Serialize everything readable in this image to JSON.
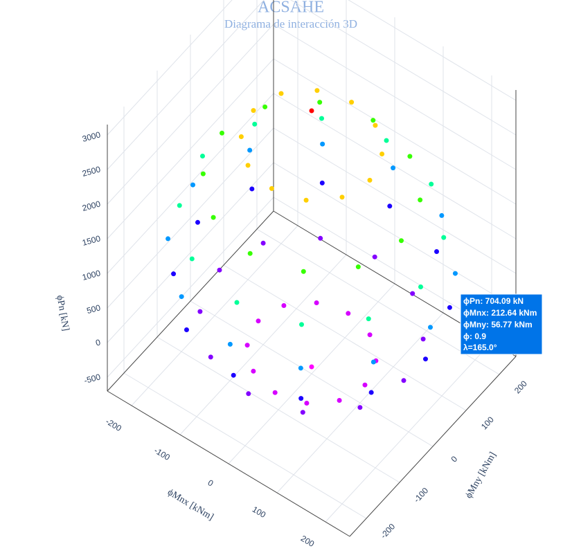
{
  "chart_data": {
    "type": "scatter3d",
    "title": "ACSAHE",
    "subtitle": "Diagrama de interacción 3D",
    "x_label": "ϕMnx [kNm]",
    "y_label": "ϕMny [kNm]",
    "z_label": "ϕPn [kN]",
    "x": [
      0,
      110,
      95,
      55,
      0,
      -55,
      -95,
      -110,
      -95,
      -55,
      0,
      55,
      95,
      190,
      165,
      95,
      0,
      -95,
      -165,
      -190,
      -165,
      -95,
      0,
      95,
      165,
      235,
      204,
      118,
      0,
      -118,
      -204,
      -235,
      -204,
      -118,
      0,
      118,
      204,
      245,
      212,
      123,
      0,
      -123,
      -212,
      -245,
      -212,
      -123,
      0,
      123,
      212,
      225,
      195,
      113,
      0,
      -113,
      -195,
      -225,
      -195,
      -113,
      0,
      113,
      195,
      185,
      160,
      93,
      0,
      -93,
      -160,
      -185,
      -160,
      -93,
      0,
      93,
      160,
      120,
      104,
      60,
      0,
      -60,
      -104,
      -120,
      -104,
      -60,
      0,
      60,
      104,
      0
    ],
    "y": [
      0,
      0,
      55,
      95,
      110,
      95,
      55,
      0,
      -55,
      -95,
      -110,
      -95,
      -55,
      0,
      95,
      165,
      190,
      165,
      95,
      0,
      -95,
      -165,
      -190,
      -165,
      -95,
      0,
      118,
      204,
      235,
      204,
      118,
      0,
      -118,
      -204,
      -235,
      -204,
      -118,
      0,
      123,
      212,
      245,
      212,
      123,
      0,
      -123,
      -212,
      -245,
      -212,
      -123,
      0,
      113,
      195,
      225,
      195,
      113,
      0,
      -113,
      -195,
      -225,
      -195,
      -113,
      0,
      93,
      160,
      185,
      160,
      93,
      0,
      -93,
      -160,
      -185,
      -160,
      -93,
      0,
      60,
      104,
      120,
      104,
      60,
      0,
      -60,
      -104,
      -120,
      -104,
      -60,
      0
    ],
    "z": [
      -600,
      -400,
      -400,
      -400,
      -400,
      -400,
      -400,
      -400,
      -400,
      -400,
      -400,
      -400,
      -400,
      0,
      0,
      0,
      0,
      0,
      0,
      0,
      0,
      0,
      0,
      0,
      0,
      500,
      500,
      500,
      500,
      500,
      500,
      500,
      500,
      500,
      500,
      500,
      500,
      1000,
      1000,
      1000,
      1000,
      1000,
      1000,
      1000,
      1000,
      1000,
      1000,
      1000,
      1000,
      1500,
      1500,
      1500,
      1500,
      1500,
      1500,
      1500,
      1500,
      1500,
      1500,
      1500,
      1500,
      2000,
      2000,
      2000,
      2000,
      2000,
      2000,
      2000,
      2000,
      2000,
      2000,
      2000,
      2000,
      2600,
      2600,
      2600,
      2600,
      2600,
      2600,
      2600,
      2600,
      2600,
      2600,
      2600,
      2600,
      3100
    ],
    "xlim": [
      -250,
      250
    ],
    "ylim": [
      -250,
      250
    ],
    "zlim": [
      -700,
      3150
    ],
    "xticks": [
      -200,
      -100,
      0,
      100,
      200
    ],
    "yticks": [
      -200,
      -100,
      0,
      100,
      200
    ],
    "zticks": [
      -500,
      0,
      500,
      1000,
      1500,
      2000,
      2500,
      3000
    ],
    "colorscale": [
      "#ff00ff",
      "#8000ff",
      "#0000ff",
      "#00ffff",
      "#00ff00",
      "#ffff00",
      "#ff0000"
    ],
    "hover": [
      "ϕPn: 704.09 kN",
      "ϕMnx: 212.64 kNm",
      "ϕMny: 56.77 kNm",
      "ϕ: 0.9",
      "λ=165.0°"
    ]
  }
}
